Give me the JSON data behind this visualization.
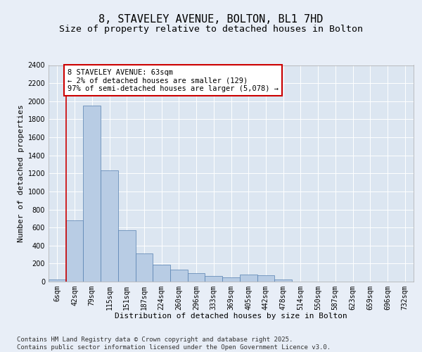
{
  "title_line1": "8, STAVELEY AVENUE, BOLTON, BL1 7HD",
  "title_line2": "Size of property relative to detached houses in Bolton",
  "xlabel": "Distribution of detached houses by size in Bolton",
  "ylabel": "Number of detached properties",
  "bar_categories": [
    "6sqm",
    "42sqm",
    "79sqm",
    "115sqm",
    "151sqm",
    "187sqm",
    "224sqm",
    "260sqm",
    "296sqm",
    "333sqm",
    "369sqm",
    "405sqm",
    "442sqm",
    "478sqm",
    "514sqm",
    "550sqm",
    "587sqm",
    "623sqm",
    "659sqm",
    "696sqm",
    "732sqm"
  ],
  "bar_values": [
    20,
    680,
    1950,
    1230,
    570,
    310,
    185,
    130,
    90,
    65,
    50,
    80,
    70,
    20,
    0,
    0,
    0,
    0,
    0,
    0,
    0
  ],
  "bar_color": "#b8cce4",
  "bar_edgecolor": "#5580b0",
  "ylim": [
    0,
    2400
  ],
  "yticks": [
    0,
    200,
    400,
    600,
    800,
    1000,
    1200,
    1400,
    1600,
    1800,
    2000,
    2200,
    2400
  ],
  "redline_x": 0.5,
  "annotation_text": "8 STAVELEY AVENUE: 63sqm\n← 2% of detached houses are smaller (129)\n97% of semi-detached houses are larger (5,078) →",
  "annotation_box_color": "#ffffff",
  "annotation_box_edgecolor": "#cc0000",
  "background_color": "#e8eef7",
  "plot_bg_color": "#dce6f1",
  "grid_color": "#ffffff",
  "footer_text": "Contains HM Land Registry data © Crown copyright and database right 2025.\nContains public sector information licensed under the Open Government Licence v3.0.",
  "title_fontsize": 11,
  "subtitle_fontsize": 9.5,
  "axis_label_fontsize": 8,
  "tick_fontsize": 7,
  "annotation_fontsize": 7.5
}
